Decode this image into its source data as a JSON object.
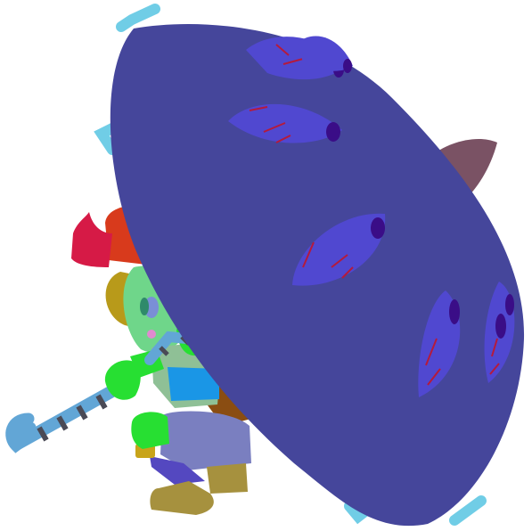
{
  "scene": {
    "kind": "game-character-sprite",
    "description_items": [
      "character",
      "umbrella",
      "cane"
    ],
    "character": {
      "hat_color": "#d83a1c",
      "hat_brim_color": "#d61a46",
      "hair_color": "#b89a1a",
      "skin_color": "#6fd68a",
      "glove_color": "#27df32",
      "shirt_color": "#1a96e6",
      "vest_color": "#8fc096",
      "pants_color": "#7a7fc0",
      "boot_color": "#a6913e",
      "cape_color": "#8a4d12"
    },
    "umbrella": {
      "canopy_color": "#45469b",
      "eye_color": "#5048d0",
      "pupil_color": "#3a0d87",
      "vein_color": "#b51a3c",
      "tip_color": "#7a5264",
      "rib_color": "#70cde6",
      "eye_count": 6
    },
    "cane": {
      "primary_color": "#62a6d6",
      "stripe_color": "#4a4a56"
    }
  }
}
